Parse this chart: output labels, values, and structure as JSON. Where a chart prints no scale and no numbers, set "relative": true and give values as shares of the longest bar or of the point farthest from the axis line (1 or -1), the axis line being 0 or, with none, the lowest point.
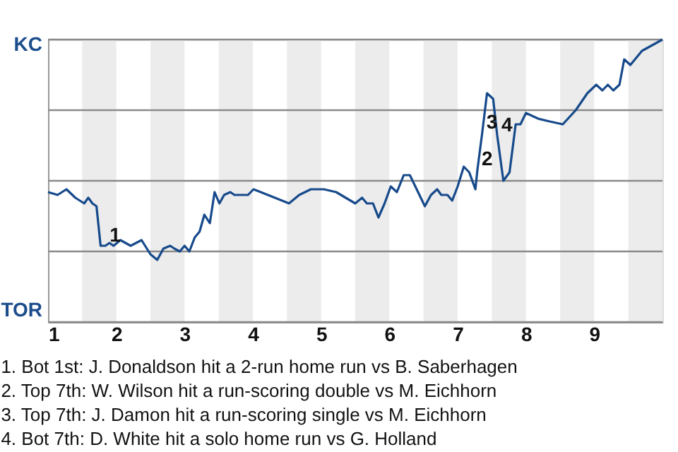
{
  "chart_data": {
    "type": "line",
    "relative": true,
    "x": [
      1.0,
      1.14,
      1.27,
      1.4,
      1.53,
      1.59,
      1.65,
      1.71,
      1.77,
      1.84,
      1.9,
      1.96,
      2.06,
      2.21,
      2.37,
      2.5,
      2.6,
      2.69,
      2.79,
      2.85,
      2.93,
      3.0,
      3.07,
      3.15,
      3.22,
      3.29,
      3.37,
      3.44,
      3.51,
      3.58,
      3.67,
      3.73,
      3.93,
      4.01,
      4.22,
      4.53,
      4.68,
      4.85,
      5.04,
      5.22,
      5.5,
      5.6,
      5.67,
      5.76,
      5.84,
      5.93,
      6.02,
      6.11,
      6.21,
      6.3,
      6.42,
      6.52,
      6.61,
      6.7,
      6.76,
      6.85,
      6.92,
      7.0,
      7.09,
      7.17,
      7.26,
      7.29,
      7.36,
      7.43,
      7.52,
      7.58,
      7.67,
      7.76,
      7.85,
      7.92,
      8.0,
      8.18,
      8.35,
      8.54,
      8.73,
      8.9,
      9.03,
      9.12,
      9.2,
      9.28,
      9.37,
      9.44,
      9.53,
      9.7,
      9.85,
      10.0
    ],
    "series": [
      {
        "color": "#174a8b",
        "values": [
          0.46,
          0.45,
          0.47,
          0.44,
          0.42,
          0.44,
          0.42,
          0.41,
          0.27,
          0.27,
          0.28,
          0.27,
          0.29,
          0.27,
          0.29,
          0.24,
          0.22,
          0.26,
          0.27,
          0.26,
          0.25,
          0.27,
          0.25,
          0.3,
          0.32,
          0.38,
          0.35,
          0.46,
          0.42,
          0.45,
          0.46,
          0.45,
          0.45,
          0.47,
          0.45,
          0.42,
          0.45,
          0.47,
          0.47,
          0.46,
          0.42,
          0.44,
          0.42,
          0.42,
          0.37,
          0.42,
          0.48,
          0.46,
          0.52,
          0.52,
          0.46,
          0.41,
          0.45,
          0.47,
          0.45,
          0.45,
          0.43,
          0.48,
          0.55,
          0.53,
          0.47,
          0.54,
          0.67,
          0.81,
          0.79,
          0.66,
          0.5,
          0.53,
          0.7,
          0.7,
          0.74,
          0.72,
          0.71,
          0.7,
          0.75,
          0.81,
          0.84,
          0.82,
          0.84,
          0.82,
          0.84,
          0.93,
          0.91,
          0.96,
          0.98,
          1.0
        ]
      }
    ],
    "xlim": [
      1,
      10
    ],
    "xticks": [
      1,
      2,
      3,
      4,
      5,
      6,
      7,
      8,
      9
    ],
    "ref_lines": [
      {
        "axis": "y",
        "value": 1,
        "label": "KC",
        "color": "#8a8a8a"
      },
      {
        "axis": "y",
        "value": 0.75,
        "color": "#8a8a8a"
      },
      {
        "axis": "y",
        "value": 0.5,
        "color": "#8a8a8a"
      },
      {
        "axis": "y",
        "value": 0.25,
        "color": "#8a8a8a"
      },
      {
        "axis": "y",
        "value": 0,
        "label": "TOR",
        "color": "#8a8a8a"
      }
    ],
    "marker": "none",
    "line_style": "solid",
    "bands": [
      {
        "axis": "x",
        "from": 1.5,
        "to": 2,
        "color": "#ececec"
      },
      {
        "axis": "x",
        "from": 2.5,
        "to": 3,
        "color": "#ececec"
      },
      {
        "axis": "x",
        "from": 3.5,
        "to": 4,
        "color": "#ececec"
      },
      {
        "axis": "x",
        "from": 4.5,
        "to": 5,
        "color": "#ececec"
      },
      {
        "axis": "x",
        "from": 5.5,
        "to": 6,
        "color": "#ececec"
      },
      {
        "axis": "x",
        "from": 6.5,
        "to": 7,
        "color": "#ececec"
      },
      {
        "axis": "x",
        "from": 7.5,
        "to": 8,
        "color": "#ececec"
      },
      {
        "axis": "x",
        "from": 8.5,
        "to": 9,
        "color": "#ececec"
      },
      {
        "axis": "x",
        "from": 9.5,
        "to": 10,
        "color": "#ececec"
      }
    ],
    "annotations": [
      {
        "text": "1",
        "x": 1.84,
        "y": 0.27
      },
      {
        "text": "2",
        "x": 7.29,
        "y": 0.54
      },
      {
        "text": "3",
        "x": 7.36,
        "y": 0.67
      },
      {
        "text": "4",
        "x": 7.58,
        "y": 0.66
      },
      "1. Bot 1st: J. Donaldson hit a 2-run home run vs B. Saberhagen",
      "2. Top 7th: W. Wilson hit a run-scoring double vs M. Eichhorn",
      "3. Top 7th: J. Damon hit a run-scoring single vs M. Eichhorn",
      "4. Bot 7th: D. White hit a solo home run vs G. Holland"
    ]
  }
}
